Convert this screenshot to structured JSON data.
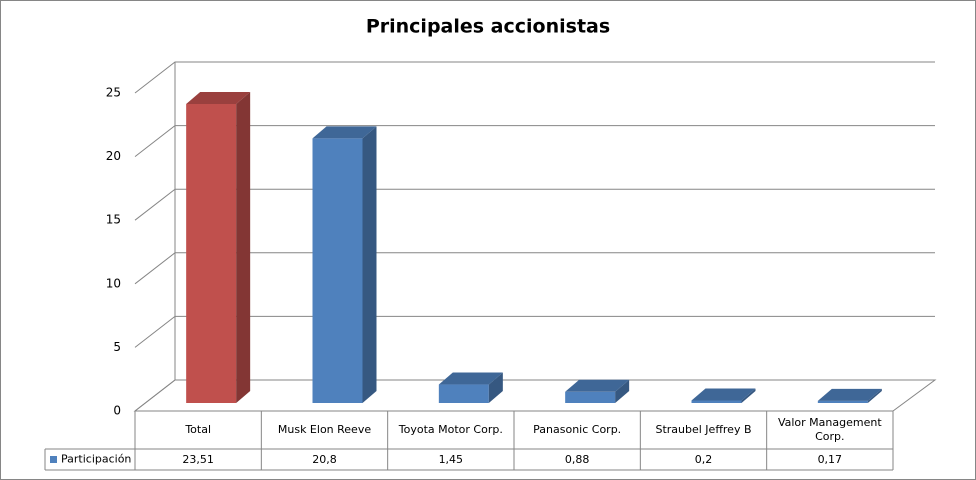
{
  "chart_data": {
    "type": "bar3d",
    "title": "Principales accionistas",
    "categories": [
      "Total",
      "Musk Elon Reeve",
      "Toyota Motor Corp.",
      "Panasonic Corp.",
      "Straubel Jeffrey B",
      "Valor Management Corp."
    ],
    "series": [
      {
        "name": "Participación",
        "color": "#4f81bd",
        "values": [
          23.51,
          20.8,
          1.45,
          0.88,
          0.2,
          0.17
        ],
        "value_labels": [
          "23,51",
          "20,8",
          "1,45",
          "0,88",
          "0,2",
          "0,17"
        ],
        "point_colors": [
          "#c0504d",
          "#4f81bd",
          "#4f81bd",
          "#4f81bd",
          "#4f81bd",
          "#4f81bd"
        ]
      }
    ],
    "ylim": [
      0,
      25
    ],
    "yticks": [
      0,
      5,
      10,
      15,
      20,
      25
    ],
    "grid": true,
    "data_table": true
  }
}
